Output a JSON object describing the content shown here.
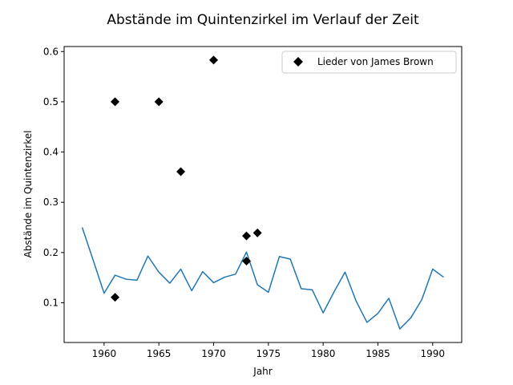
{
  "chart_data": {
    "type": "line",
    "title": "Abstände im Quintenzirkel im Verlauf der Zeit",
    "xlabel": "Jahr",
    "ylabel": "Abstände im Quintenzirkel",
    "xlim": [
      1956.35,
      1992.65
    ],
    "ylim": [
      0.021,
      0.61
    ],
    "xticks": [
      1960,
      1965,
      1970,
      1975,
      1980,
      1985,
      1990
    ],
    "yticks": [
      0.1,
      0.2,
      0.3,
      0.4,
      0.5,
      0.6
    ],
    "grid": false,
    "legend_position": "top-right",
    "line_series": {
      "color": "#1f77b4",
      "x": [
        1958,
        1959,
        1960,
        1961,
        1962,
        1963,
        1964,
        1965,
        1966,
        1967,
        1968,
        1969,
        1970,
        1971,
        1972,
        1973,
        1974,
        1975,
        1976,
        1977,
        1978,
        1979,
        1980,
        1981,
        1982,
        1983,
        1984,
        1985,
        1986,
        1987,
        1988,
        1989,
        1990,
        1991
      ],
      "y": [
        0.25,
        0.185,
        0.119,
        0.155,
        0.147,
        0.145,
        0.193,
        0.161,
        0.139,
        0.167,
        0.124,
        0.162,
        0.14,
        0.151,
        0.157,
        0.201,
        0.136,
        0.121,
        0.192,
        0.187,
        0.128,
        0.126,
        0.08,
        0.122,
        0.161,
        0.104,
        0.061,
        0.079,
        0.109,
        0.048,
        0.07,
        0.106,
        0.167,
        0.151
      ]
    },
    "marker_series": {
      "name": "Lieder von James Brown",
      "color": "#000000",
      "marker": "diamond",
      "points": [
        {
          "x": 1961,
          "y": 0.111
        },
        {
          "x": 1961,
          "y": 0.5
        },
        {
          "x": 1965,
          "y": 0.5
        },
        {
          "x": 1967,
          "y": 0.361
        },
        {
          "x": 1970,
          "y": 0.583
        },
        {
          "x": 1973,
          "y": 0.233
        },
        {
          "x": 1973,
          "y": 0.183
        },
        {
          "x": 1974,
          "y": 0.239
        }
      ]
    }
  }
}
